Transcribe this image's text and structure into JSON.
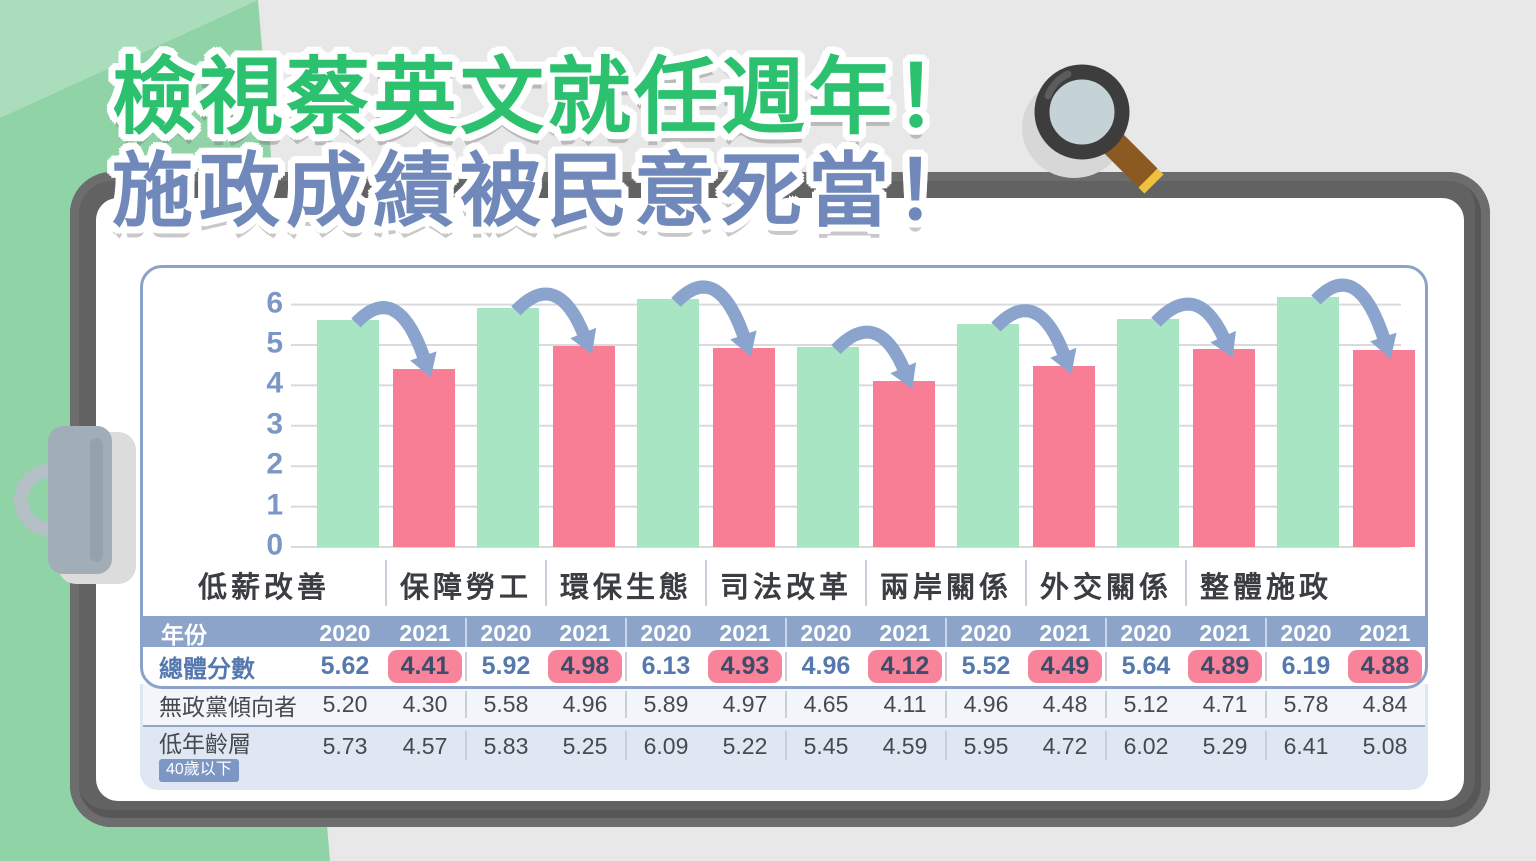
{
  "title": {
    "line1": "檢視蔡英文就任週年！",
    "line2": "施政成績被民意死當！"
  },
  "chart_data": {
    "type": "bar",
    "title": "",
    "categories": [
      "低薪改善",
      "保障勞工",
      "環保生態",
      "司法改革",
      "兩岸關係",
      "外交關係",
      "整體施政"
    ],
    "series": [
      {
        "name": "2020",
        "values": [
          5.62,
          5.92,
          6.13,
          4.96,
          5.52,
          5.64,
          6.19
        ]
      },
      {
        "name": "2021",
        "values": [
          4.41,
          4.98,
          4.93,
          4.12,
          4.49,
          4.89,
          4.88
        ]
      }
    ],
    "ylim": [
      0,
      6
    ],
    "yticks": [
      0,
      1,
      2,
      3,
      4,
      5,
      6
    ],
    "grid": true,
    "legend_position": "none",
    "annotation": "curved blue decline arrow from each 2020 bar top to 2021 bar top"
  },
  "table": {
    "year_label": "年份",
    "years": [
      "2020",
      "2021"
    ],
    "rows": [
      {
        "label": "總體分數",
        "sublabel": "",
        "values": [
          [
            "5.62",
            "4.41"
          ],
          [
            "5.92",
            "4.98"
          ],
          [
            "6.13",
            "4.93"
          ],
          [
            "4.96",
            "4.12"
          ],
          [
            "5.52",
            "4.49"
          ],
          [
            "5.64",
            "4.89"
          ],
          [
            "6.19",
            "4.88"
          ]
        ]
      },
      {
        "label": "無政黨傾向者",
        "sublabel": "",
        "values": [
          [
            "5.20",
            "4.30"
          ],
          [
            "5.58",
            "4.96"
          ],
          [
            "5.89",
            "4.97"
          ],
          [
            "4.65",
            "4.11"
          ],
          [
            "4.96",
            "4.48"
          ],
          [
            "5.12",
            "4.71"
          ],
          [
            "5.78",
            "4.84"
          ]
        ]
      },
      {
        "label": "低年齡層",
        "sublabel": "40歲以下",
        "values": [
          [
            "5.73",
            "4.57"
          ],
          [
            "5.83",
            "5.25"
          ],
          [
            "6.09",
            "5.22"
          ],
          [
            "5.45",
            "4.59"
          ],
          [
            "5.95",
            "4.72"
          ],
          [
            "6.02",
            "5.29"
          ],
          [
            "6.41",
            "5.08"
          ]
        ]
      }
    ]
  },
  "icons": {
    "magnifier": "magnifier-icon",
    "clip": "binder-clip-icon",
    "frame": "clipboard-frame"
  },
  "colors": {
    "bar_2020": "#a8e6c3",
    "bar_2021": "#f87e96",
    "arrow": "#8ba4ce",
    "grid_line": "#d8dadc",
    "axis_label": "#7b97c6",
    "band_bg": "#8ca4ca",
    "badge_bg": "#f8839a",
    "age_badge_bg": "#7d97c5",
    "panel_border": "#8ba3c9",
    "card_bg": "#dee7f2",
    "row3_bg": "#f2f5fa",
    "title_green": "#2cc16f",
    "title_blue": "#7089ba",
    "bg_green": "#8fd3a7",
    "bg_green_light": "#a9ddbb"
  }
}
